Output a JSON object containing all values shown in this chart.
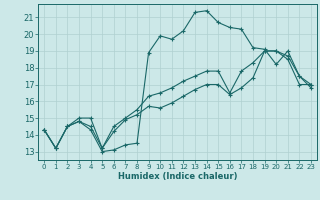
{
  "xlabel": "Humidex (Indice chaleur)",
  "bg_color": "#cce8e8",
  "grid_color": "#b0d0d0",
  "line_color": "#1a6868",
  "xlim": [
    -0.5,
    23.5
  ],
  "ylim": [
    12.5,
    21.8
  ],
  "yticks": [
    13,
    14,
    15,
    16,
    17,
    18,
    19,
    20,
    21
  ],
  "xticks": [
    0,
    1,
    2,
    3,
    4,
    5,
    6,
    7,
    8,
    9,
    10,
    11,
    12,
    13,
    14,
    15,
    16,
    17,
    18,
    19,
    20,
    21,
    22,
    23
  ],
  "line1_x": [
    0,
    1,
    2,
    3,
    4,
    5,
    6,
    7,
    8,
    9,
    10,
    11,
    12,
    13,
    14,
    15,
    16,
    17,
    18,
    19,
    20,
    21,
    22,
    23
  ],
  "line1_y": [
    14.3,
    13.2,
    14.5,
    14.8,
    14.3,
    13.0,
    13.1,
    13.4,
    13.5,
    18.9,
    19.9,
    19.7,
    20.2,
    21.3,
    21.4,
    20.7,
    20.4,
    20.3,
    19.2,
    19.1,
    18.2,
    19.0,
    17.5,
    16.8
  ],
  "line2_x": [
    0,
    1,
    2,
    3,
    4,
    5,
    6,
    7,
    8,
    9,
    10,
    11,
    12,
    13,
    14,
    15,
    16,
    17,
    18,
    19,
    20,
    21,
    22,
    23
  ],
  "line2_y": [
    14.3,
    13.2,
    14.5,
    14.8,
    14.5,
    13.2,
    14.5,
    15.0,
    15.5,
    16.3,
    16.5,
    16.8,
    17.2,
    17.5,
    17.8,
    17.8,
    16.5,
    17.8,
    18.3,
    19.0,
    19.0,
    18.7,
    17.5,
    17.0
  ],
  "line3_x": [
    0,
    1,
    2,
    3,
    4,
    5,
    6,
    7,
    8,
    9,
    10,
    11,
    12,
    13,
    14,
    15,
    16,
    17,
    18,
    19,
    20,
    21,
    22,
    23
  ],
  "line3_y": [
    14.3,
    13.2,
    14.5,
    15.0,
    15.0,
    13.2,
    14.2,
    14.9,
    15.2,
    15.7,
    15.6,
    15.9,
    16.3,
    16.7,
    17.0,
    17.0,
    16.4,
    16.8,
    17.4,
    19.0,
    19.0,
    18.5,
    17.0,
    17.0
  ]
}
